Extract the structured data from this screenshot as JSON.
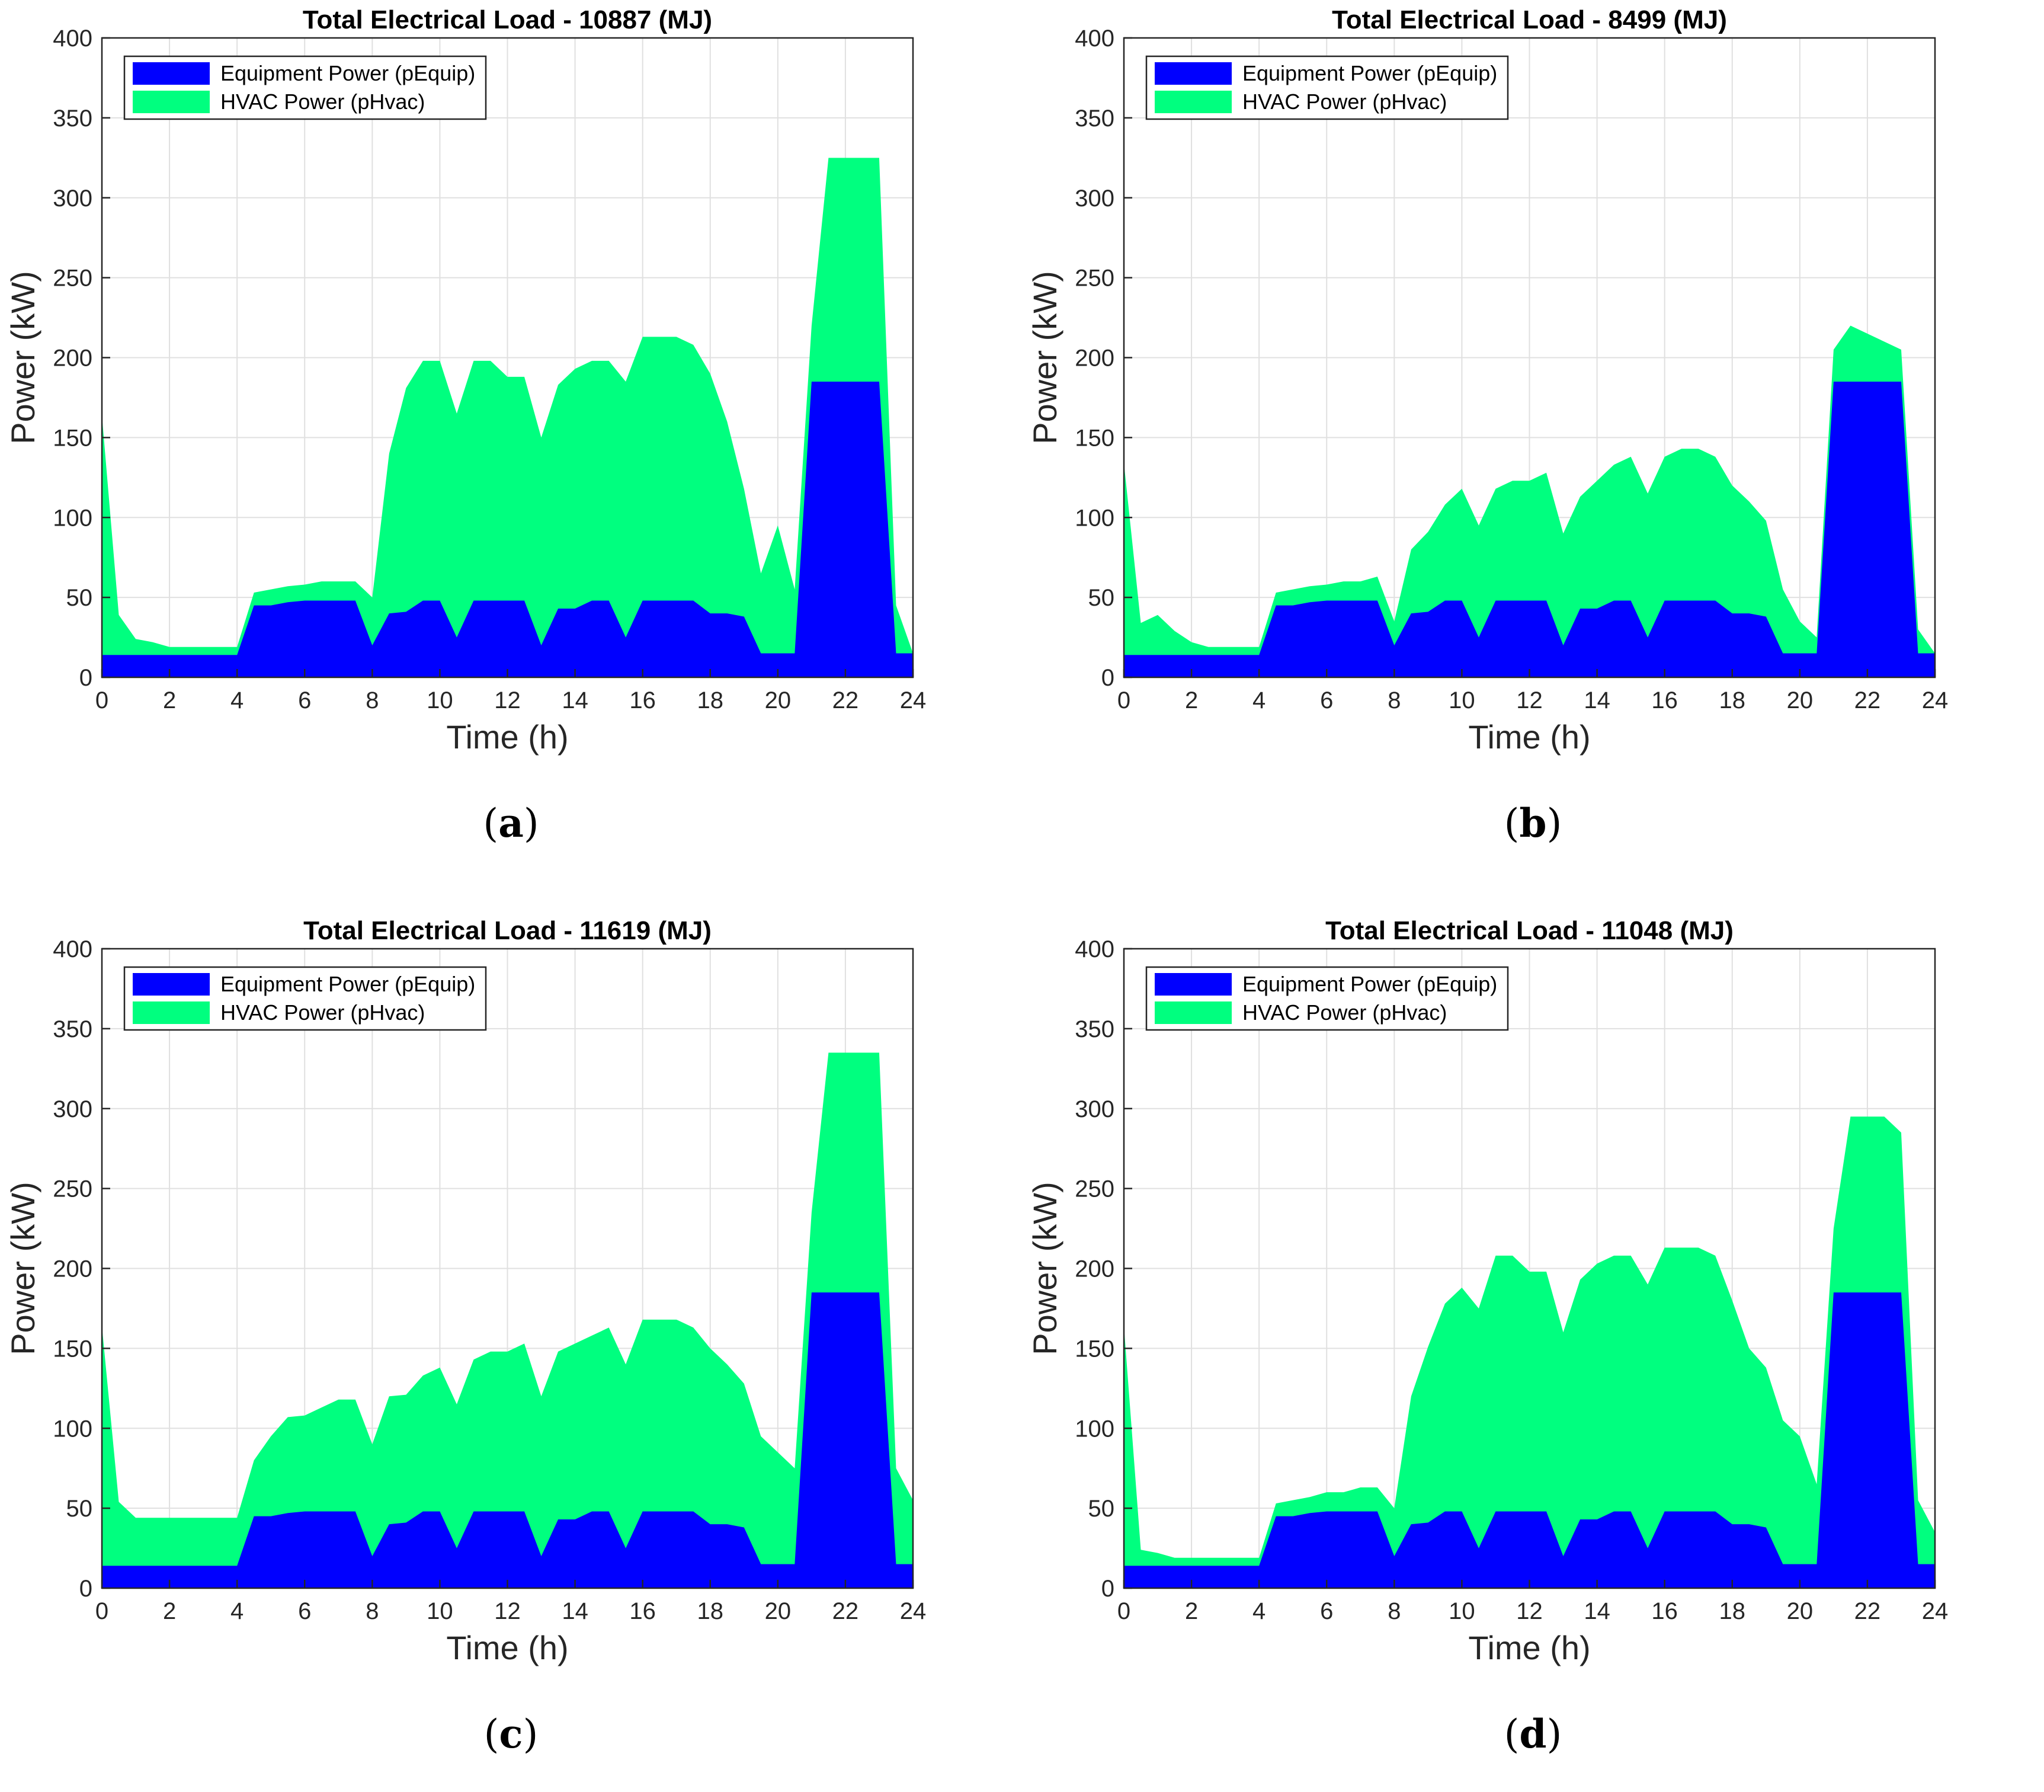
{
  "figure": {
    "colors": {
      "equip": "#0000FF",
      "hvac": "#00FF7F",
      "grid": "#E0E0E0",
      "axis": "#262626"
    }
  },
  "chart_data": [
    {
      "id": "a",
      "type": "area",
      "stacked": true,
      "title": "Total Electrical Load - 10887 (MJ)",
      "caption": {
        "open": "(",
        "letter": "a",
        "close": ")"
      },
      "xlabel": "Time (h)",
      "ylabel": "Power (kW)",
      "xlim": [
        0,
        24
      ],
      "ylim": [
        0,
        400
      ],
      "xticks": [
        0,
        2,
        4,
        6,
        8,
        10,
        12,
        14,
        16,
        18,
        20,
        22,
        24
      ],
      "yticks": [
        0,
        50,
        100,
        150,
        200,
        250,
        300,
        350,
        400
      ],
      "grid": true,
      "legend": {
        "position": "top-left",
        "entries": [
          "Equipment Power (pEquip)",
          "HVAC Power (pHvac)"
        ]
      },
      "x": [
        0,
        0.5,
        1,
        1.5,
        2,
        2.5,
        3,
        3.5,
        4,
        4.5,
        5,
        5.5,
        6,
        6.5,
        7,
        7.5,
        8,
        8.5,
        9,
        9.5,
        10,
        10.5,
        11,
        11.5,
        12,
        12.5,
        13,
        13.5,
        14,
        14.5,
        15,
        15.5,
        16,
        16.5,
        17,
        17.5,
        18,
        18.5,
        19,
        19.5,
        20,
        20.5,
        21,
        21.5,
        22,
        22.5,
        23,
        23.5,
        24
      ],
      "series": [
        {
          "name": "Equipment Power (pEquip)",
          "values": [
            14,
            14,
            14,
            14,
            14,
            14,
            14,
            14,
            14,
            45,
            45,
            47,
            48,
            48,
            48,
            48,
            20,
            40,
            41,
            48,
            48,
            25,
            48,
            48,
            48,
            48,
            20,
            43,
            43,
            48,
            48,
            25,
            48,
            48,
            48,
            48,
            40,
            40,
            38,
            15,
            15,
            15,
            185,
            185,
            185,
            185,
            185,
            15,
            15
          ]
        },
        {
          "name": "HVAC Power (pHvac)",
          "values": [
            150,
            25,
            10,
            8,
            5,
            5,
            5,
            5,
            5,
            8,
            10,
            10,
            10,
            12,
            12,
            12,
            30,
            100,
            140,
            150,
            150,
            140,
            150,
            150,
            140,
            140,
            130,
            140,
            150,
            150,
            150,
            160,
            165,
            165,
            165,
            160,
            150,
            120,
            80,
            50,
            80,
            40,
            35,
            140,
            140,
            140,
            140,
            30,
            0
          ]
        }
      ]
    },
    {
      "id": "b",
      "type": "area",
      "stacked": true,
      "title": "Total Electrical Load - 8499 (MJ)",
      "caption": {
        "open": "(",
        "letter": "b",
        "close": ")"
      },
      "xlabel": "Time (h)",
      "ylabel": "Power (kW)",
      "xlim": [
        0,
        24
      ],
      "ylim": [
        0,
        400
      ],
      "xticks": [
        0,
        2,
        4,
        6,
        8,
        10,
        12,
        14,
        16,
        18,
        20,
        22,
        24
      ],
      "yticks": [
        0,
        50,
        100,
        150,
        200,
        250,
        300,
        350,
        400
      ],
      "grid": true,
      "legend": {
        "position": "top-left",
        "entries": [
          "Equipment Power (pEquip)",
          "HVAC Power (pHvac)"
        ]
      },
      "x": [
        0,
        0.5,
        1,
        1.5,
        2,
        2.5,
        3,
        3.5,
        4,
        4.5,
        5,
        5.5,
        6,
        6.5,
        7,
        7.5,
        8,
        8.5,
        9,
        9.5,
        10,
        10.5,
        11,
        11.5,
        12,
        12.5,
        13,
        13.5,
        14,
        14.5,
        15,
        15.5,
        16,
        16.5,
        17,
        17.5,
        18,
        18.5,
        19,
        19.5,
        20,
        20.5,
        21,
        21.5,
        22,
        22.5,
        23,
        23.5,
        24
      ],
      "series": [
        {
          "name": "Equipment Power (pEquip)",
          "values": [
            14,
            14,
            14,
            14,
            14,
            14,
            14,
            14,
            14,
            45,
            45,
            47,
            48,
            48,
            48,
            48,
            20,
            40,
            41,
            48,
            48,
            25,
            48,
            48,
            48,
            48,
            20,
            43,
            43,
            48,
            48,
            25,
            48,
            48,
            48,
            48,
            40,
            40,
            38,
            15,
            15,
            15,
            185,
            185,
            185,
            185,
            185,
            15,
            15
          ]
        },
        {
          "name": "HVAC Power (pHvac)",
          "values": [
            120,
            20,
            25,
            15,
            8,
            5,
            5,
            5,
            5,
            8,
            10,
            10,
            10,
            12,
            12,
            15,
            15,
            40,
            50,
            60,
            70,
            70,
            70,
            75,
            75,
            80,
            70,
            70,
            80,
            85,
            90,
            90,
            90,
            95,
            95,
            90,
            80,
            70,
            60,
            40,
            20,
            10,
            20,
            35,
            30,
            25,
            20,
            15,
            0
          ]
        }
      ]
    },
    {
      "id": "c",
      "type": "area",
      "stacked": true,
      "title": "Total Electrical Load - 11619 (MJ)",
      "caption": {
        "open": "(",
        "letter": "c",
        "close": ")"
      },
      "xlabel": "Time (h)",
      "ylabel": "Power (kW)",
      "xlim": [
        0,
        24
      ],
      "ylim": [
        0,
        400
      ],
      "xticks": [
        0,
        2,
        4,
        6,
        8,
        10,
        12,
        14,
        16,
        18,
        20,
        22,
        24
      ],
      "yticks": [
        0,
        50,
        100,
        150,
        200,
        250,
        300,
        350,
        400
      ],
      "grid": true,
      "legend": {
        "position": "top-left",
        "entries": [
          "Equipment Power (pEquip)",
          "HVAC Power (pHvac)"
        ]
      },
      "x": [
        0,
        0.5,
        1,
        1.5,
        2,
        2.5,
        3,
        3.5,
        4,
        4.5,
        5,
        5.5,
        6,
        6.5,
        7,
        7.5,
        8,
        8.5,
        9,
        9.5,
        10,
        10.5,
        11,
        11.5,
        12,
        12.5,
        13,
        13.5,
        14,
        14.5,
        15,
        15.5,
        16,
        16.5,
        17,
        17.5,
        18,
        18.5,
        19,
        19.5,
        20,
        20.5,
        21,
        21.5,
        22,
        22.5,
        23,
        23.5,
        24
      ],
      "series": [
        {
          "name": "Equipment Power (pEquip)",
          "values": [
            14,
            14,
            14,
            14,
            14,
            14,
            14,
            14,
            14,
            45,
            45,
            47,
            48,
            48,
            48,
            48,
            20,
            40,
            41,
            48,
            48,
            25,
            48,
            48,
            48,
            48,
            20,
            43,
            43,
            48,
            48,
            25,
            48,
            48,
            48,
            48,
            40,
            40,
            38,
            15,
            15,
            15,
            185,
            185,
            185,
            185,
            185,
            15,
            15
          ]
        },
        {
          "name": "HVAC Power (pHvac)",
          "values": [
            150,
            40,
            30,
            30,
            30,
            30,
            30,
            30,
            30,
            35,
            50,
            60,
            60,
            65,
            70,
            70,
            70,
            80,
            80,
            85,
            90,
            90,
            95,
            100,
            100,
            105,
            100,
            105,
            110,
            110,
            115,
            115,
            120,
            120,
            120,
            115,
            110,
            100,
            90,
            80,
            70,
            60,
            50,
            150,
            150,
            150,
            150,
            60,
            40
          ]
        }
      ]
    },
    {
      "id": "d",
      "type": "area",
      "stacked": true,
      "title": "Total Electrical Load - 11048 (MJ)",
      "caption": {
        "open": "(",
        "letter": "d",
        "close": ")"
      },
      "xlabel": "Time (h)",
      "ylabel": "Power (kW)",
      "xlim": [
        0,
        24
      ],
      "ylim": [
        0,
        400
      ],
      "xticks": [
        0,
        2,
        4,
        6,
        8,
        10,
        12,
        14,
        16,
        18,
        20,
        22,
        24
      ],
      "yticks": [
        0,
        50,
        100,
        150,
        200,
        250,
        300,
        350,
        400
      ],
      "grid": true,
      "legend": {
        "position": "top-left",
        "entries": [
          "Equipment Power (pEquip)",
          "HVAC Power (pHvac)"
        ]
      },
      "x": [
        0,
        0.5,
        1,
        1.5,
        2,
        2.5,
        3,
        3.5,
        4,
        4.5,
        5,
        5.5,
        6,
        6.5,
        7,
        7.5,
        8,
        8.5,
        9,
        9.5,
        10,
        10.5,
        11,
        11.5,
        12,
        12.5,
        13,
        13.5,
        14,
        14.5,
        15,
        15.5,
        16,
        16.5,
        17,
        17.5,
        18,
        18.5,
        19,
        19.5,
        20,
        20.5,
        21,
        21.5,
        22,
        22.5,
        23,
        23.5,
        24
      ],
      "series": [
        {
          "name": "Equipment Power (pEquip)",
          "values": [
            14,
            14,
            14,
            14,
            14,
            14,
            14,
            14,
            14,
            45,
            45,
            47,
            48,
            48,
            48,
            48,
            20,
            40,
            41,
            48,
            48,
            25,
            48,
            48,
            48,
            48,
            20,
            43,
            43,
            48,
            48,
            25,
            48,
            48,
            48,
            48,
            40,
            40,
            38,
            15,
            15,
            15,
            185,
            185,
            185,
            185,
            185,
            15,
            15
          ]
        },
        {
          "name": "HVAC Power (pHvac)",
          "values": [
            150,
            10,
            8,
            5,
            5,
            5,
            5,
            5,
            5,
            8,
            10,
            10,
            12,
            12,
            15,
            15,
            30,
            80,
            110,
            130,
            140,
            150,
            160,
            160,
            150,
            150,
            140,
            150,
            160,
            160,
            160,
            165,
            165,
            165,
            165,
            160,
            140,
            110,
            100,
            90,
            80,
            50,
            40,
            110,
            110,
            110,
            100,
            40,
            20
          ]
        }
      ]
    }
  ]
}
